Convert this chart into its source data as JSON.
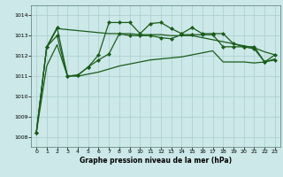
{
  "xlabel": "Graphe pression niveau de la mer (hPa)",
  "bg_color": "#cce8e8",
  "grid_color": "#aacccc",
  "line_color": "#1a5c1a",
  "ylim": [
    1007.5,
    1014.5
  ],
  "xlim": [
    -0.5,
    23.5
  ],
  "yticks": [
    1008,
    1009,
    1010,
    1011,
    1012,
    1013,
    1014
  ],
  "xticks": [
    0,
    1,
    2,
    3,
    4,
    5,
    6,
    7,
    8,
    9,
    10,
    11,
    12,
    13,
    14,
    15,
    16,
    17,
    18,
    19,
    20,
    21,
    22,
    23
  ],
  "line_smooth_top": [
    1008.2,
    1012.4,
    1013.35,
    1013.3,
    1013.25,
    1013.2,
    1013.15,
    1013.1,
    1013.1,
    1013.1,
    1013.05,
    1013.05,
    1013.05,
    1013.0,
    1013.0,
    1013.0,
    1012.9,
    1012.8,
    1012.7,
    1012.6,
    1012.5,
    1012.4,
    1012.2,
    1012.05
  ],
  "line_marked_high": [
    1008.2,
    1012.45,
    1013.4,
    1011.0,
    1011.05,
    1011.45,
    1012.05,
    1013.65,
    1013.65,
    1013.65,
    1013.1,
    1013.6,
    1013.65,
    1013.35,
    1013.1,
    1013.4,
    1013.1,
    1013.1,
    1013.1,
    1012.6,
    1012.45,
    1012.45,
    1011.7,
    1012.05
  ],
  "line_marked_low": [
    1008.2,
    1012.45,
    1013.0,
    1011.0,
    1011.05,
    1011.45,
    1011.8,
    1012.1,
    1013.1,
    1013.0,
    1013.0,
    1013.0,
    1012.9,
    1012.85,
    1013.05,
    1013.05,
    1013.05,
    1013.05,
    1012.45,
    1012.45,
    1012.45,
    1012.35,
    1011.7,
    1011.8
  ],
  "line_smooth_bottom": [
    1008.2,
    1011.5,
    1012.55,
    1011.0,
    1011.0,
    1011.1,
    1011.2,
    1011.35,
    1011.5,
    1011.6,
    1011.7,
    1011.8,
    1011.85,
    1011.9,
    1011.95,
    1012.05,
    1012.15,
    1012.25,
    1011.7,
    1011.7,
    1011.7,
    1011.65,
    1011.7,
    1011.85
  ]
}
